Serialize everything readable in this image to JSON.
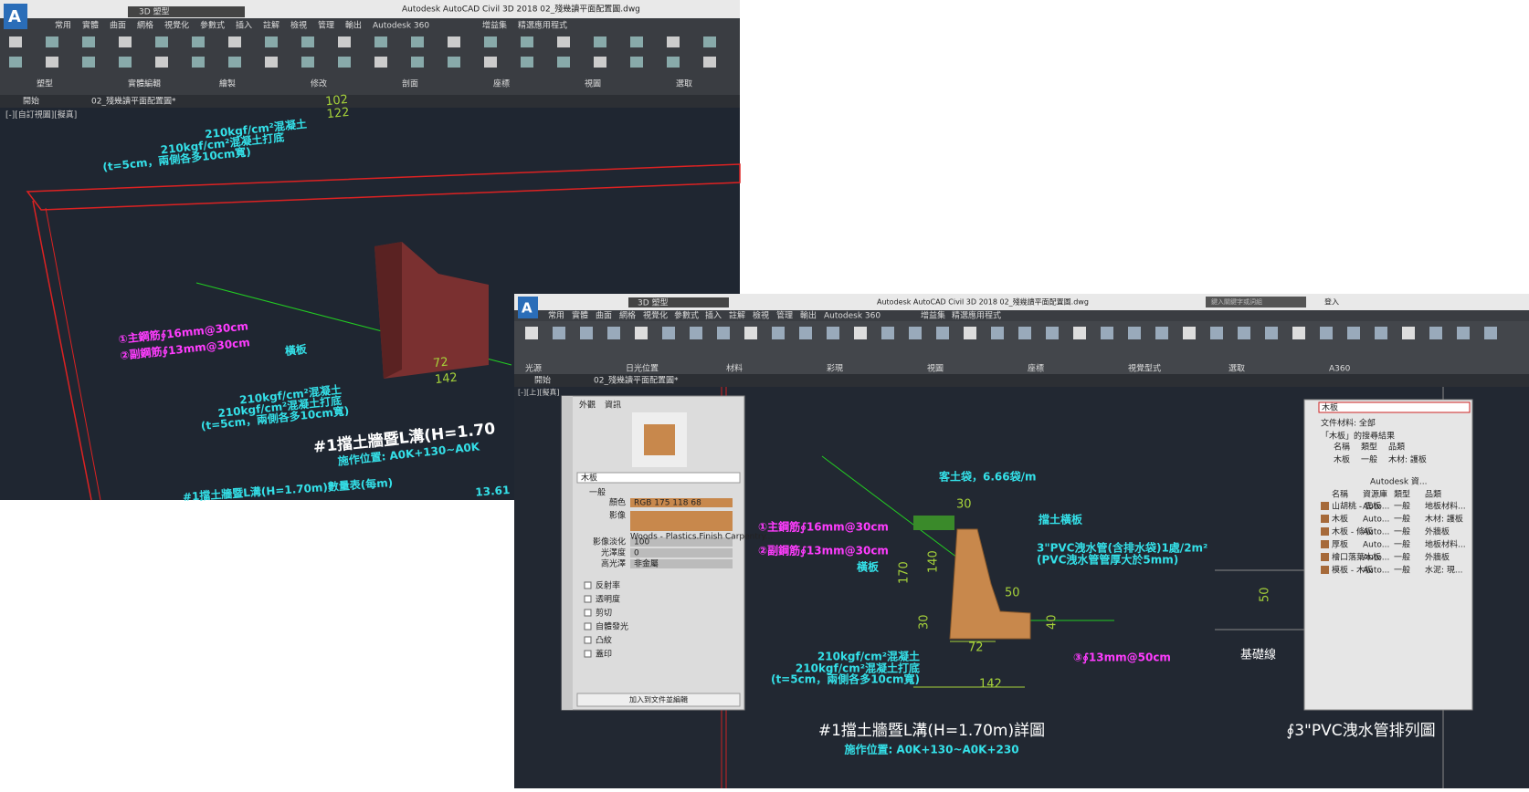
{
  "back_window": {
    "title": "Autodesk AutoCAD Civil 3D 2018    02_殘幾讀平面配置圖.dwg",
    "workspace": "3D 塑型",
    "tabs": [
      "常用",
      "實體",
      "曲面",
      "網格",
      "視覺化",
      "參數式",
      "插入",
      "註解",
      "檢視",
      "管理",
      "輸出",
      "Autodesk 360",
      "增益集",
      "精選應用程式"
    ],
    "panels": [
      "塑型",
      "實體編輯",
      "繪製",
      "修改",
      "剖面",
      "座標",
      "視圖",
      "選取"
    ],
    "doc_tabs": [
      "開始",
      "02_殘幾讀平面配置圖*"
    ],
    "viewport_label": "[-][自訂視圖][擬真]",
    "annotations": {
      "top_concrete": "210kgf/cm²混凝土",
      "top_base": "210kgf/cm²混凝土打底",
      "top_note": "(t=5cm，兩側各多10cm寬)",
      "dim_102": "102",
      "dim_122": "122",
      "rebar_main": "①主鋼筋∮16mm@30cm",
      "rebar_sub": "②副鋼筋∮13mm@30cm",
      "plank": "橫板",
      "concrete": "210kgf/cm²混凝土",
      "base": "210kgf/cm²混凝土打底",
      "note": "(t=5cm，兩側各多10cm寬)",
      "dim_72": "72",
      "dim_142": "142",
      "title": "#1擋土牆暨L溝(H=1.70",
      "subtitle": "施作位置: A0K+130~A0K",
      "table_title": "#1擋土牆暨L溝(H=1.70m)數量表(每m)",
      "table_value": "13.61"
    }
  },
  "front_window": {
    "title": "Autodesk AutoCAD Civil 3D 2018    02_殘幾讀平面配置圖.dwg",
    "workspace": "3D 塑型",
    "search": "鍵入關鍵字或詞組",
    "user": "登入",
    "tabs": [
      "常用",
      "實體",
      "曲面",
      "網格",
      "視覺化",
      "參數式",
      "插入",
      "註解",
      "檢視",
      "管理",
      "輸出",
      "Autodesk 360",
      "增益集",
      "精選應用程式"
    ],
    "panels": [
      "光源",
      "日光位置",
      "材料",
      "彩現",
      "視圖",
      "座標",
      "視覺型式",
      "選取",
      "A360"
    ],
    "doc_tabs": [
      "開始",
      "02_殘幾讀平面配置圖*"
    ],
    "viewport_label": "[-][上][擬真]",
    "drawing": {
      "soil_bag": "客土袋，6.66袋/m",
      "dim_top": "30",
      "retaining_plank": "擋土橫板",
      "rebar_main": "①主鋼筋∮16mm@30cm",
      "rebar_sub": "②副鋼筋∮13mm@30cm",
      "plank": "橫板",
      "pvc": "3\"PVC洩水管(含排水袋)1處/2m²",
      "pvc_note": "(PVC洩水管管厚大於5mm)",
      "dim_50": "50",
      "dim_170": "170",
      "dim_140": "140",
      "dim_30": "30",
      "dim_72": "72",
      "dim_142": "142",
      "dim_40": "40",
      "concrete": "210kgf/cm²混凝土",
      "base": "210kgf/cm²混凝土打底",
      "note": "(t=5cm，兩側各多10cm寬)",
      "rebar_3": "③∮13mm@50cm",
      "title": "#1擋土牆暨L溝(H=1.70m)詳圖",
      "subtitle": "施作位置: A0K+130~A0K+230",
      "pipe_title": "∮3\"PVC洩水管排列圖",
      "foundation": "基礎線",
      "pipe_dim": "50"
    },
    "material_editor": {
      "tabs": [
        "外觀",
        "資訊"
      ],
      "name": "木板",
      "section": "一般",
      "props": [
        [
          "顏色",
          "RGB 175 118 68"
        ],
        [
          "影像",
          ""
        ],
        [
          "影像淡化",
          "100"
        ],
        [
          "光澤度",
          "0"
        ],
        [
          "高光澤",
          "非金屬"
        ]
      ],
      "image_name": "Woods - Plastics.Finish Carpentry...",
      "groups": [
        "反射率",
        "透明度",
        "剪切",
        "自體發光",
        "凸紋",
        "蓋印"
      ],
      "button": "加入到文件並編輯"
    },
    "material_browser": {
      "search": "木板",
      "filter": "文件材料: 全部",
      "result": "「木板」的搜尋結果",
      "headers": [
        "名稱",
        "類型",
        "品類"
      ],
      "doc_rows": [
        [
          "木板",
          "一般",
          "木材: 護板"
        ]
      ],
      "library": "Autodesk 資...",
      "lib_headers": [
        "名稱",
        "資源庫",
        "類型",
        "品類"
      ],
      "lib_rows": [
        [
          "山胡桃 - 雲板",
          "Auto...",
          "一般",
          "地板材料..."
        ],
        [
          "木板",
          "Auto...",
          "一般",
          "木材: 護板"
        ],
        [
          "木板 - 條板",
          "Auto...",
          "一般",
          "外牆板"
        ],
        [
          "厚板",
          "Auto...",
          "一般",
          "地板材料..."
        ],
        [
          "檜口落葉木板",
          "Auto...",
          "一般",
          "外牆板"
        ],
        [
          "模板 - 木板",
          "Auto...",
          "一般",
          "水泥: 現..."
        ]
      ]
    }
  }
}
